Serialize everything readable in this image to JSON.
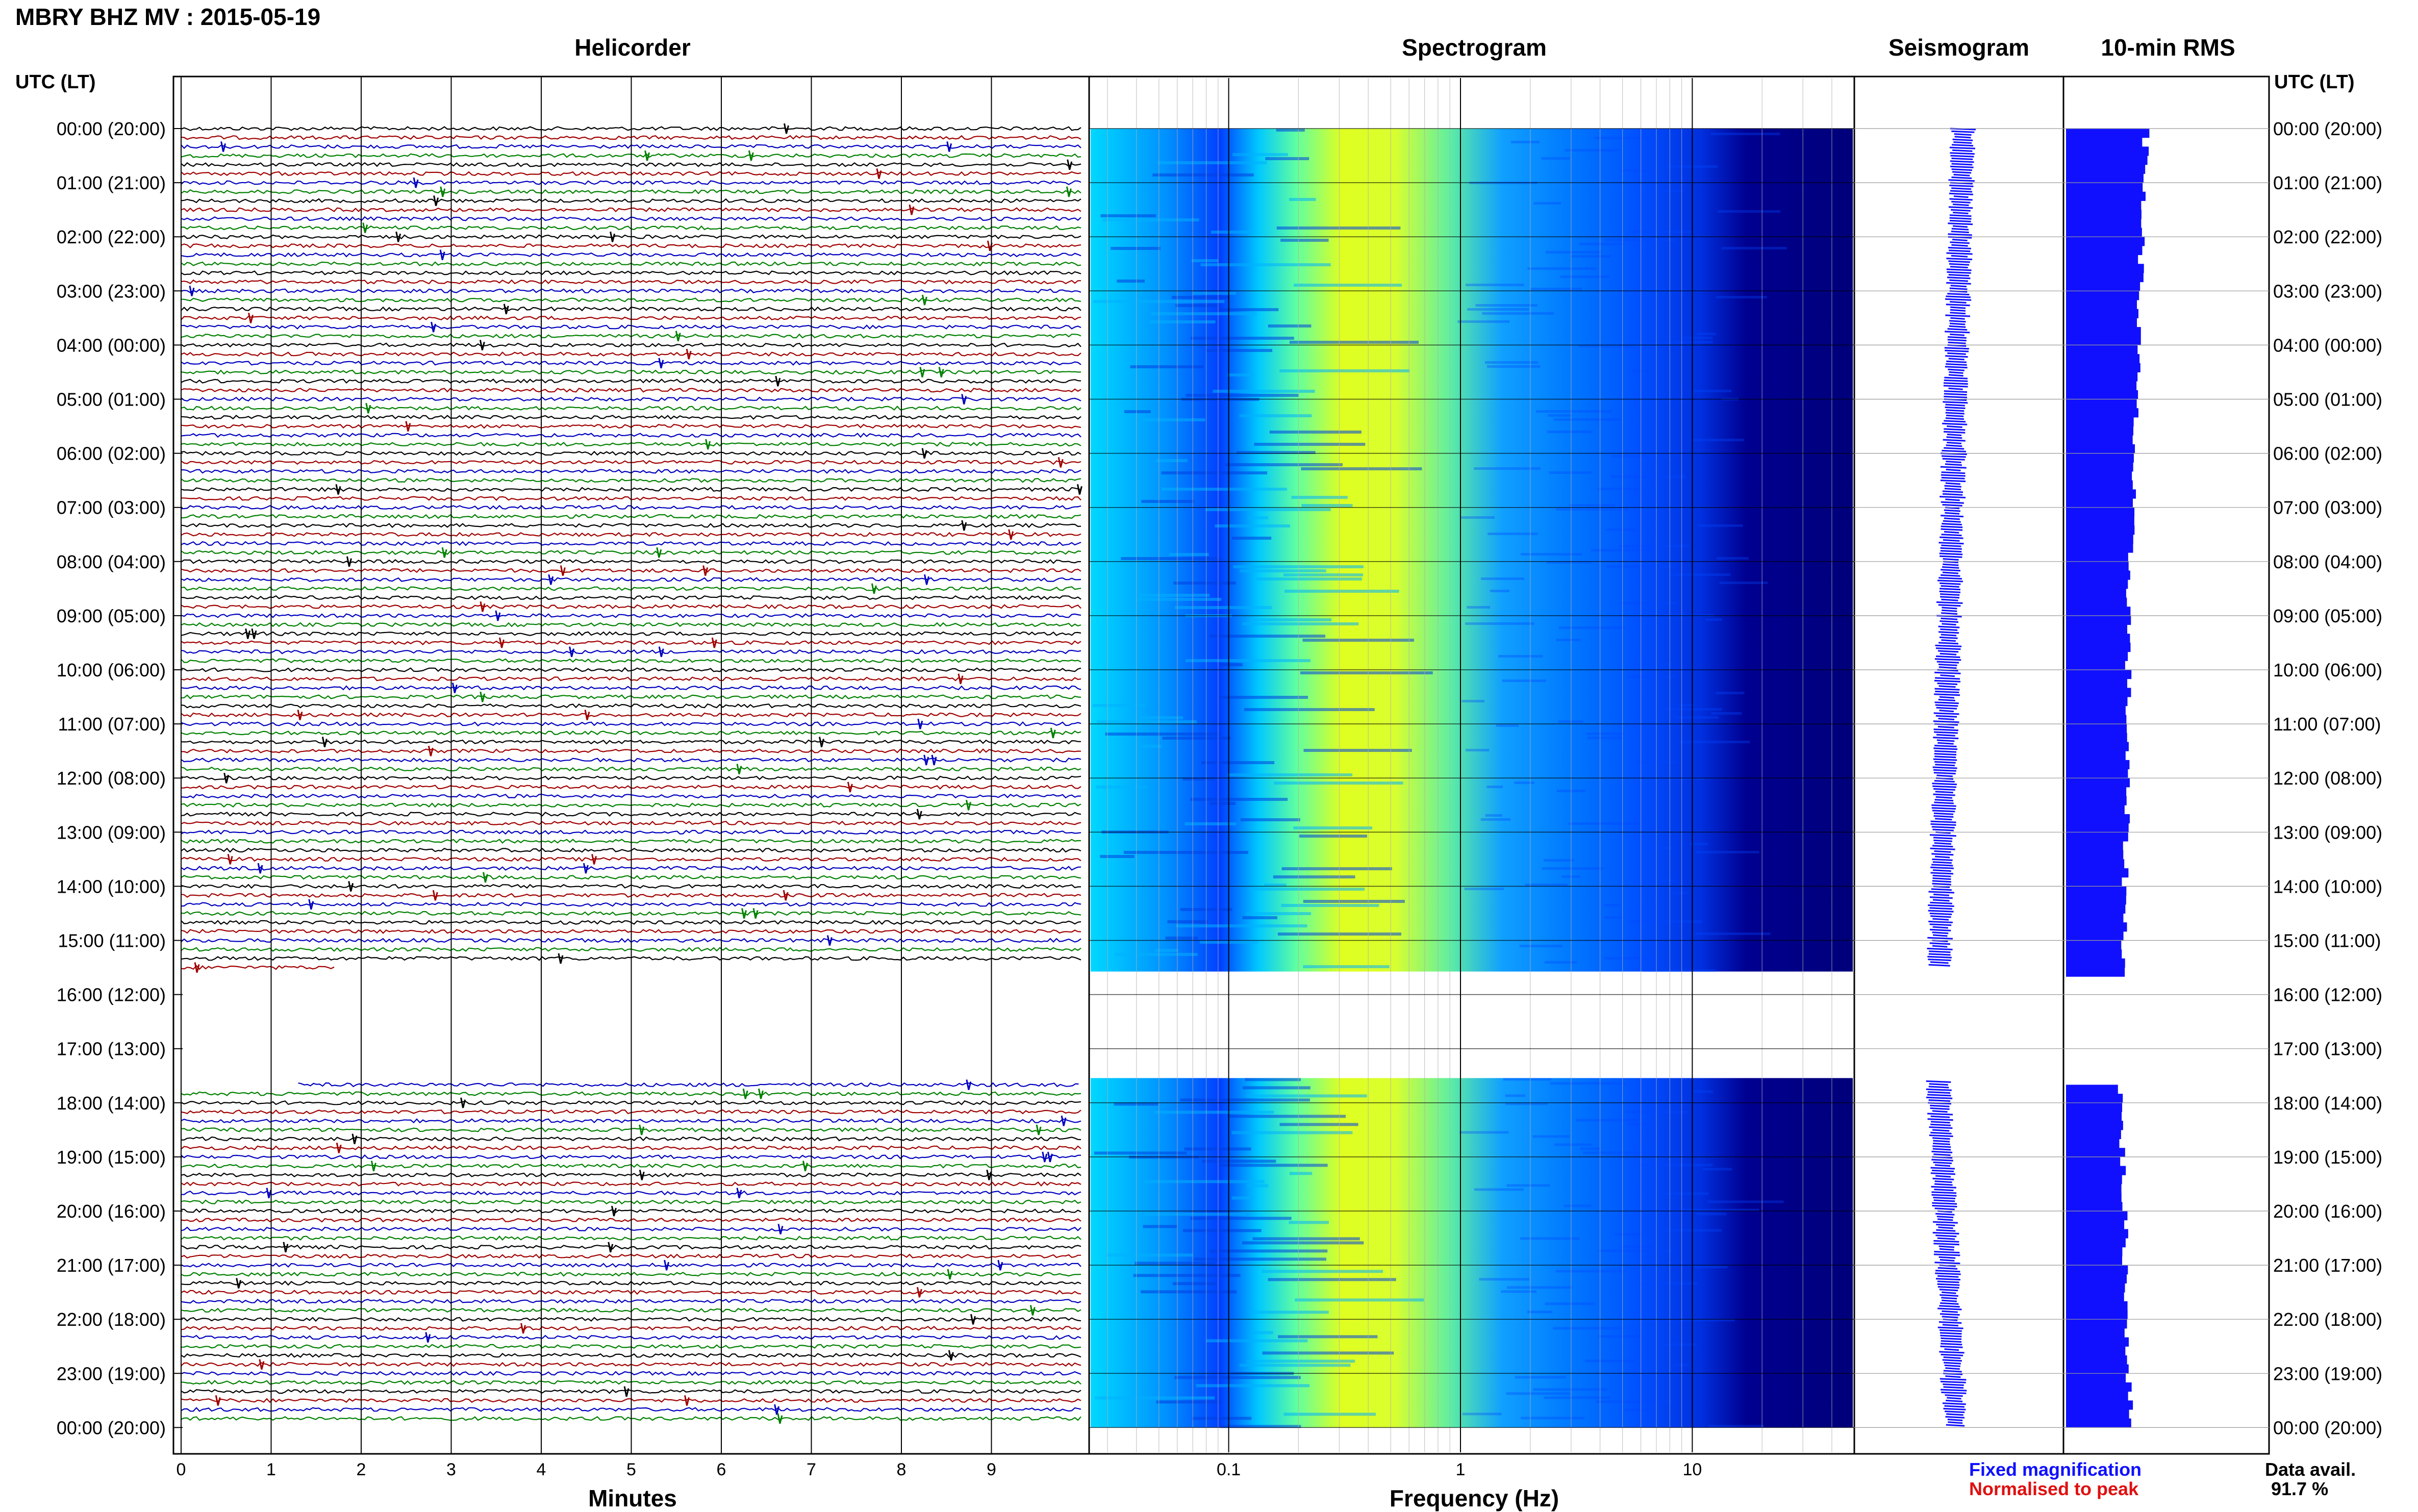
{
  "header": {
    "title": "MBRY BHZ MV : 2015-05-19"
  },
  "panels": {
    "helicorder": "Helicorder",
    "spectrogram": "Spectrogram",
    "seismogram": "Seismogram",
    "rms": "10-min RMS"
  },
  "axes": {
    "utc_label": "UTC (LT)",
    "minutes_label": "Minutes",
    "frequency_label": "Frequency (Hz)"
  },
  "legend": {
    "fixed": "Fixed magnification",
    "normalised": "Normalised to peak",
    "colors": {
      "fixed": "#1010ff",
      "normalised": "#e01010"
    }
  },
  "availability": {
    "label": "Data avail.",
    "value": "91.7 %"
  },
  "chart_data": [
    {
      "type": "line",
      "name": "Helicorder",
      "xlabel": "Minutes",
      "xlim": [
        0,
        10
      ],
      "x_ticks": [
        "0",
        "1",
        "2",
        "3",
        "4",
        "5",
        "6",
        "7",
        "8",
        "9"
      ],
      "y_ticks": [
        "00:00 (20:00)",
        "01:00 (21:00)",
        "02:00 (22:00)",
        "03:00 (23:00)",
        "04:00 (00:00)",
        "05:00 (01:00)",
        "06:00 (02:00)",
        "07:00 (03:00)",
        "08:00 (04:00)",
        "09:00 (05:00)",
        "10:00 (06:00)",
        "11:00 (07:00)",
        "12:00 (08:00)",
        "13:00 (09:00)",
        "14:00 (10:00)",
        "15:00 (11:00)",
        "16:00 (12:00)",
        "17:00 (13:00)",
        "18:00 (14:00)",
        "19:00 (15:00)",
        "20:00 (16:00)",
        "21:00 (17:00)",
        "22:00 (18:00)",
        "23:00 (19:00)",
        "00:00 (20:00)"
      ],
      "trace_colors": [
        "#000000",
        "#a00000",
        "#0000c0",
        "#008000"
      ],
      "lines_per_hour": 6,
      "data_gap_hours": [
        15.5,
        17.6
      ],
      "last_partial_line_minutes": 1.7,
      "first_resumed_line_start_minutes": 1.3
    },
    {
      "type": "heatmap",
      "name": "Spectrogram",
      "xlabel": "Frequency (Hz)",
      "x_scale": "log",
      "xlim": [
        0.025,
        50
      ],
      "x_ticks": [
        "0.1",
        "1",
        "10"
      ],
      "colormap": [
        "#00007f",
        "#0000ff",
        "#0070ff",
        "#00d8ff",
        "#60ffa0",
        "#d0ff30",
        "#ffff00"
      ],
      "data_gap_hours": [
        15.5,
        17.6
      ]
    },
    {
      "type": "line",
      "name": "Seismogram",
      "trace_color": "#1010ff",
      "data_gap_hours": [
        15.5,
        17.6
      ]
    },
    {
      "type": "bar",
      "name": "10-min RMS",
      "bar_color": "#1010ff",
      "data_gap_hours": [
        15.6,
        17.6
      ]
    }
  ]
}
